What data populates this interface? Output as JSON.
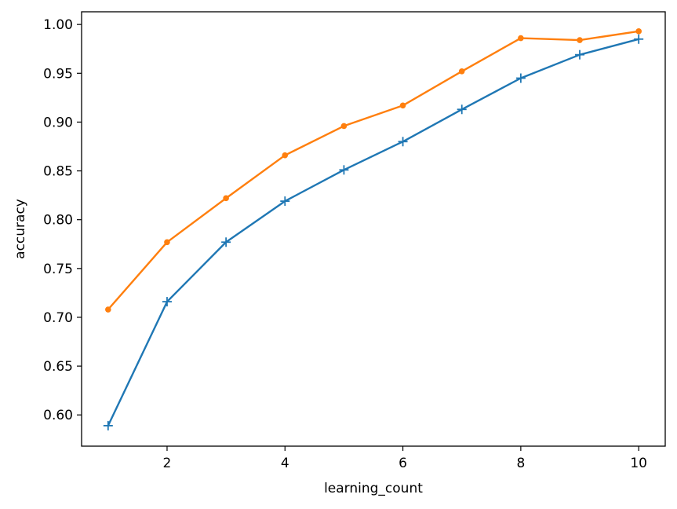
{
  "chart_data": {
    "type": "line",
    "xlabel": "learning_count",
    "ylabel": "accuracy",
    "xlim": [
      0.55,
      10.45
    ],
    "ylim": [
      0.568,
      1.013
    ],
    "xticks": [
      2,
      4,
      6,
      8,
      10
    ],
    "xtick_labels": [
      "2",
      "4",
      "6",
      "8",
      "10"
    ],
    "yticks": [
      0.6,
      0.65,
      0.7,
      0.75,
      0.8,
      0.85,
      0.9,
      0.95,
      1.0
    ],
    "ytick_labels": [
      "0.60",
      "0.65",
      "0.70",
      "0.75",
      "0.80",
      "0.85",
      "0.90",
      "0.95",
      "1.00"
    ],
    "grid": false,
    "legend": "none",
    "x": [
      1,
      2,
      3,
      4,
      5,
      6,
      7,
      8,
      9,
      10
    ],
    "series": [
      {
        "color": "#1f77b4",
        "marker": "plus",
        "values": [
          0.589,
          0.716,
          0.777,
          0.819,
          0.851,
          0.88,
          0.913,
          0.945,
          0.969,
          0.985
        ]
      },
      {
        "color": "#ff7f0e",
        "marker": "dot",
        "values": [
          0.708,
          0.777,
          0.822,
          0.866,
          0.896,
          0.917,
          0.952,
          0.986,
          0.984,
          0.993
        ]
      }
    ]
  }
}
